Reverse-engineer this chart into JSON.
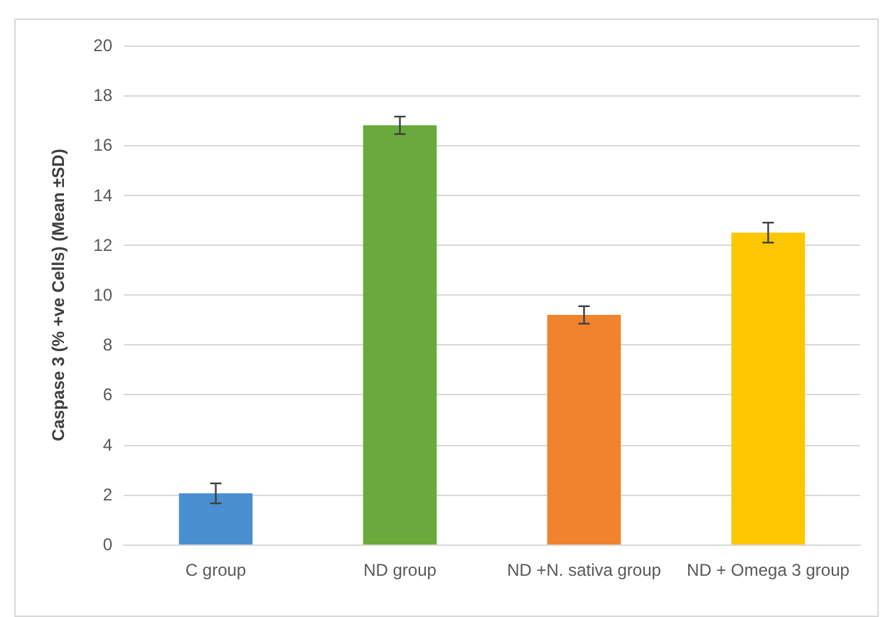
{
  "chart_data": {
    "type": "bar",
    "ylabel": "Caspase 3 (% +ve Cells) (Mean ±SD)",
    "categories": [
      "C group",
      "ND group",
      "ND +N. sativa group",
      "ND + Omega 3 group"
    ],
    "values": [
      2.05,
      16.8,
      9.2,
      12.5
    ],
    "colors": [
      "#4a90d0",
      "#6aaa3c",
      "#f0832e",
      "#fcc600"
    ],
    "errors": [
      0.4,
      0.35,
      0.35,
      0.4
    ],
    "ylim": [
      0,
      20
    ],
    "yticks": [
      0,
      2,
      4,
      6,
      8,
      10,
      12,
      14,
      16,
      18,
      20
    ],
    "grid": "y"
  }
}
